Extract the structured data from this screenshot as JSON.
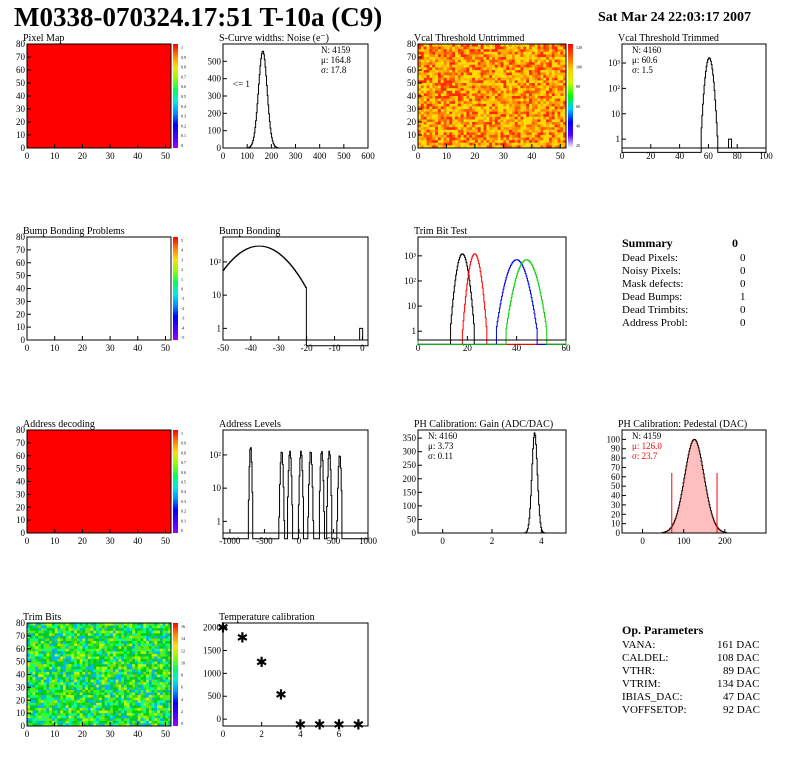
{
  "header": {
    "title": "M0338-070324.17:51 T-10a (C9)",
    "date": "Sat Mar 24 22:03:17 2007"
  },
  "colors": {
    "red": "#ff0000",
    "blue": "#0000ee",
    "green": "#00cc00",
    "black": "#000000"
  },
  "chart_data": [
    {
      "id": "pixel-map",
      "type": "heatmap",
      "title": "Pixel Map",
      "xlim": [
        0,
        52
      ],
      "ylim": [
        0,
        80
      ],
      "xticks": [
        0,
        10,
        20,
        30,
        40,
        50
      ],
      "yticks": [
        0,
        10,
        20,
        30,
        40,
        50,
        60,
        70,
        80
      ],
      "zticks": [
        "1",
        "0.9",
        "0.8",
        "0.7",
        "0.6",
        "0.5",
        "0.4",
        "0.3",
        "0.2",
        "0.1",
        "0"
      ],
      "fill": "uniform"
    },
    {
      "id": "scurve",
      "type": "histogram",
      "title": "S-Curve widths: Noise (e⁻)",
      "xlim": [
        0,
        600
      ],
      "ylim": [
        0,
        600
      ],
      "xticks": [
        0,
        100,
        200,
        300,
        400,
        500,
        600
      ],
      "yticks": [
        0,
        100,
        200,
        300,
        400,
        500
      ],
      "stats": [
        "N: 4159",
        "μ: 164.8",
        "σ: 17.8"
      ],
      "annotation": "<= 1",
      "peaks": [
        {
          "mean": 164.8,
          "sigma": 17.8,
          "height": 560
        }
      ]
    },
    {
      "id": "vcal-untrimmed",
      "type": "heatmap",
      "title": "Vcal Threshold Untrimmed",
      "xlim": [
        0,
        52
      ],
      "ylim": [
        0,
        80
      ],
      "xticks": [
        0,
        10,
        20,
        30,
        40,
        50
      ],
      "yticks": [
        0,
        10,
        20,
        30,
        40,
        50,
        60,
        70,
        80
      ],
      "zticks": [
        "120",
        "100",
        "80",
        "60",
        "40",
        "20"
      ],
      "fill": "noise-warm"
    },
    {
      "id": "vcal-trimmed",
      "type": "histogram",
      "title": "Vcal Threshold Trimmed",
      "log": true,
      "xlim": [
        0,
        100
      ],
      "xticks": [
        0,
        20,
        40,
        60,
        80,
        100
      ],
      "yticks": [
        "10³",
        "10²",
        "10",
        "1"
      ],
      "stats": [
        "N: 4160",
        "μ: 60.6",
        "σ:  1.5"
      ],
      "peaks": [
        {
          "mean": 60.6,
          "sigma": 1.5,
          "height": 1600
        }
      ],
      "extra": [
        {
          "x": 74,
          "height": 1
        }
      ]
    },
    {
      "id": "bump-problems",
      "type": "heatmap",
      "title": "Bump Bonding Problems",
      "xlim": [
        0,
        52
      ],
      "ylim": [
        0,
        80
      ],
      "xticks": [
        0,
        10,
        20,
        30,
        40,
        50
      ],
      "yticks": [
        0,
        10,
        20,
        30,
        40,
        50,
        60,
        70,
        80
      ],
      "zticks": [
        "5",
        "4",
        "3",
        "2",
        "1",
        "0",
        "-1",
        "-2",
        "-3",
        "-4",
        "-5"
      ],
      "fill": "empty"
    },
    {
      "id": "bump-bonding",
      "type": "histogram",
      "title": "Bump Bonding",
      "log": true,
      "xlim": [
        -50,
        2
      ],
      "xticks": [
        -50,
        -40,
        -30,
        -20,
        -10,
        0
      ],
      "yticks": [
        "10²",
        "10",
        "1"
      ],
      "peaks": [
        {
          "mean": -37,
          "sigma": 7,
          "height": 300,
          "min": -50,
          "max": -20
        }
      ],
      "extra": [
        {
          "x": -1,
          "height": 1
        }
      ]
    },
    {
      "id": "trim-bit-test",
      "type": "histogram",
      "title": "Trim Bit Test",
      "log": true,
      "xlim": [
        0,
        60
      ],
      "xticks": [
        0,
        20,
        40,
        60
      ],
      "yticks": [
        "10³",
        "10²",
        "10",
        "1"
      ],
      "series": [
        {
          "color": "black",
          "peaks": [
            {
              "mean": 18,
              "sigma": 1.3,
              "height": 1200
            }
          ]
        },
        {
          "color": "red",
          "peaks": [
            {
              "mean": 23,
              "sigma": 1.3,
              "height": 1200
            }
          ]
        },
        {
          "color": "blue",
          "peaks": [
            {
              "mean": 40,
              "sigma": 2.3,
              "height": 700
            }
          ]
        },
        {
          "color": "green",
          "peaks": [
            {
              "mean": 44,
              "sigma": 2.3,
              "height": 700
            }
          ]
        }
      ]
    },
    {
      "id": "address-decoding",
      "type": "heatmap",
      "title": "Address decoding",
      "xlim": [
        0,
        52
      ],
      "ylim": [
        0,
        80
      ],
      "xticks": [
        0,
        10,
        20,
        30,
        40,
        50
      ],
      "yticks": [
        0,
        10,
        20,
        30,
        40,
        50,
        60,
        70,
        80
      ],
      "zticks": [
        "1",
        "0.9",
        "0.8",
        "0.7",
        "0.6",
        "0.5",
        "0.4",
        "0.3",
        "0.2",
        "0.1",
        "0"
      ],
      "fill": "uniform"
    },
    {
      "id": "address-levels",
      "type": "histogram",
      "title": "Address Levels",
      "log": true,
      "xlim": [
        -1100,
        1000
      ],
      "xticks": [
        -1000,
        -500,
        0,
        500,
        1000
      ],
      "yticks": [
        "10²",
        "10",
        "1"
      ],
      "peaks": [
        {
          "mean": -700,
          "sigma": 10,
          "height": 180
        },
        {
          "mean": -250,
          "sigma": 12,
          "height": 130
        },
        {
          "mean": -130,
          "sigma": 12,
          "height": 130
        },
        {
          "mean": 30,
          "sigma": 12,
          "height": 130
        },
        {
          "mean": 170,
          "sigma": 12,
          "height": 130
        },
        {
          "mean": 330,
          "sigma": 12,
          "height": 130
        },
        {
          "mean": 440,
          "sigma": 12,
          "height": 130
        },
        {
          "mean": 590,
          "sigma": 12,
          "height": 100
        }
      ]
    },
    {
      "id": "ph-gain",
      "type": "histogram",
      "title": "PH Calibration: Gain (ADC/DAC)",
      "xlim": [
        -1,
        5
      ],
      "ylim": [
        0,
        380
      ],
      "xticks": [
        0,
        2,
        4
      ],
      "yticks": [
        0,
        50,
        100,
        150,
        200,
        250,
        300,
        350
      ],
      "stats": [
        "N: 4160",
        "μ: 3.73",
        "σ: 0.11"
      ],
      "peaks": [
        {
          "mean": 3.73,
          "sigma": 0.11,
          "height": 370
        }
      ]
    },
    {
      "id": "ph-pedestal",
      "type": "histogram",
      "title": "PH Calibration: Pedestal (DAC)",
      "xlim": [
        -50,
        300
      ],
      "ylim": [
        0,
        110
      ],
      "xticks": [
        0,
        100,
        200
      ],
      "yticks": [
        0,
        10,
        20,
        30,
        40,
        50,
        60,
        70,
        80,
        90,
        100
      ],
      "stats": [
        "N: 4159",
        "μ: 126.0",
        "σ: 23.7"
      ],
      "statColors": [
        "black",
        "red",
        "red"
      ],
      "peaks": [
        {
          "mean": 126,
          "sigma": 23.7,
          "height": 100
        }
      ],
      "markers": [
        71,
        181
      ]
    },
    {
      "id": "trim-bits",
      "type": "heatmap",
      "title": "Trim Bits",
      "xlim": [
        0,
        52
      ],
      "ylim": [
        0,
        80
      ],
      "xticks": [
        0,
        10,
        20,
        30,
        40,
        50
      ],
      "yticks": [
        0,
        10,
        20,
        30,
        40,
        50,
        60,
        70,
        80
      ],
      "zticks": [
        "16",
        "14",
        "12",
        "10",
        "8",
        "6",
        "4",
        "2",
        "0"
      ],
      "fill": "noise-green"
    },
    {
      "id": "temp-calibration",
      "type": "scatter",
      "title": "Temperature calibration",
      "xlim": [
        0,
        7.5
      ],
      "ylim": [
        -150,
        2100
      ],
      "xticks": [
        0,
        2,
        4,
        6
      ],
      "yticks": [
        0,
        500,
        1000,
        1500,
        2000
      ],
      "x": [
        0,
        1,
        2,
        3,
        4,
        5,
        6,
        7
      ],
      "y": [
        2020,
        1800,
        1270,
        560,
        -100,
        -100,
        -100,
        -100
      ]
    }
  ],
  "summary": {
    "title": "Summary",
    "value": "0",
    "rows": [
      {
        "label": "Dead Pixels:",
        "value": "0"
      },
      {
        "label": "Noisy Pixels:",
        "value": "0"
      },
      {
        "label": "Mask defects:",
        "value": "0"
      },
      {
        "label": "Dead Bumps:",
        "value": "1"
      },
      {
        "label": "Dead Trimbits:",
        "value": "0"
      },
      {
        "label": "Address Probl:",
        "value": "0"
      }
    ]
  },
  "parameters": {
    "title": "Op. Parameters",
    "rows": [
      {
        "label": "VANA:",
        "value": "161 DAC"
      },
      {
        "label": "CALDEL:",
        "value": "108 DAC"
      },
      {
        "label": "VTHR:",
        "value": "89 DAC"
      },
      {
        "label": "VTRIM:",
        "value": "134 DAC"
      },
      {
        "label": "IBIAS_DAC:",
        "value": "47 DAC"
      },
      {
        "label": "VOFFSETOP:",
        "value": "92 DAC"
      }
    ]
  }
}
